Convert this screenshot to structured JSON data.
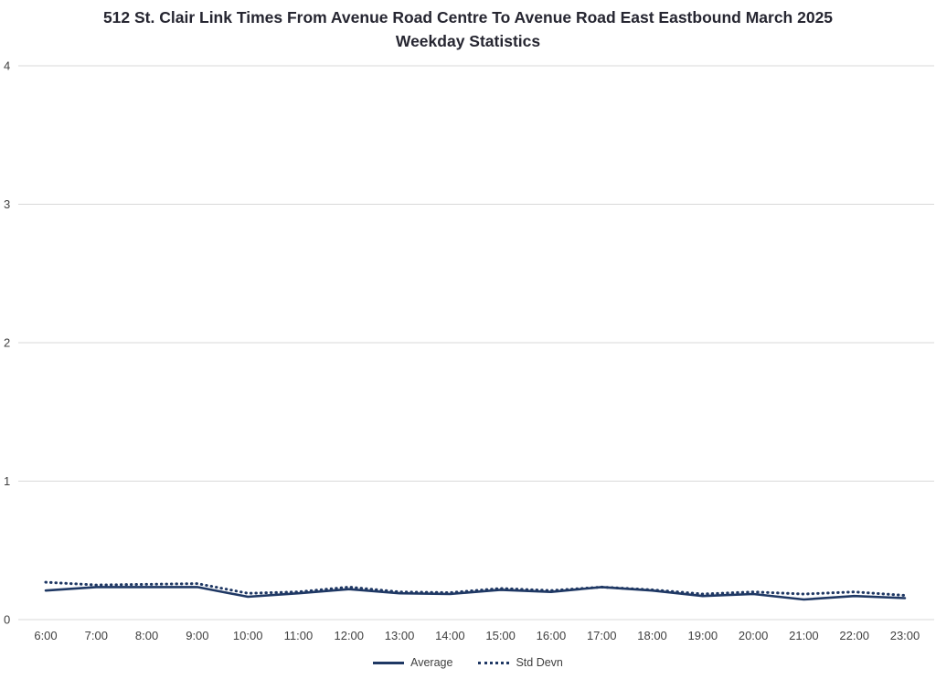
{
  "title_line1": "512 St. Clair Link Times From Avenue Road Centre To Avenue Road East Eastbound March 2025",
  "title_line2": "Weekday Statistics",
  "colors": {
    "series": "#1F3864",
    "gridline": "#D9D9D9",
    "axis_text": "#404040",
    "title_text": "#262631"
  },
  "legend": {
    "average_label": "Average",
    "stddev_label": "Std Devn"
  },
  "chart_data": {
    "type": "line",
    "title": "512 St. Clair Link Times From Avenue Road Centre To Avenue Road East Eastbound March 2025 Weekday Statistics",
    "xlabel": "",
    "ylabel": "",
    "ylim": [
      0,
      4
    ],
    "yticks": [
      0,
      1,
      2,
      3,
      4
    ],
    "grid": true,
    "legend_position": "bottom",
    "categories": [
      "6:00",
      "7:00",
      "8:00",
      "9:00",
      "10:00",
      "11:00",
      "12:00",
      "13:00",
      "14:00",
      "15:00",
      "16:00",
      "17:00",
      "18:00",
      "19:00",
      "20:00",
      "21:00",
      "22:00",
      "23:00"
    ],
    "series": [
      {
        "name": "Average",
        "style": "solid",
        "values": [
          0.21,
          0.235,
          0.235,
          0.235,
          0.165,
          0.19,
          0.22,
          0.19,
          0.185,
          0.215,
          0.2,
          0.235,
          0.21,
          0.17,
          0.185,
          0.145,
          0.17,
          0.155
        ]
      },
      {
        "name": "Std Devn",
        "style": "dotted",
        "values": [
          0.27,
          0.25,
          0.255,
          0.26,
          0.19,
          0.2,
          0.235,
          0.2,
          0.195,
          0.225,
          0.21,
          0.235,
          0.215,
          0.185,
          0.2,
          0.185,
          0.2,
          0.175
        ]
      }
    ]
  }
}
